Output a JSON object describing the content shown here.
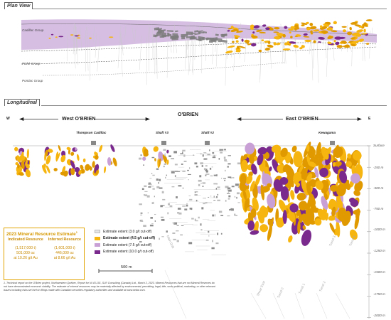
{
  "plan_view": {
    "title": "Plan View",
    "group_labels": [
      "Cadillac Group",
      "Piché Group",
      "Pontiac Group"
    ]
  },
  "longitudinal": {
    "title": "Longitudinal",
    "west_letter": "W",
    "east_letter": "E",
    "sections": {
      "west": "West O'BRIEN",
      "center": "O'BRIEN",
      "east": "East O'BRIEN"
    },
    "sites": [
      "Thompson Cadillac",
      "Shaft #3",
      "Shaft #2",
      "Kewagama"
    ],
    "depth_labels": [
      "Surface",
      "-250 m",
      "-500 m",
      "-750 m",
      "-1000 m",
      "-1250 m",
      "-1500 m",
      "-1750 m",
      "-2000 m"
    ],
    "drift_labels": [
      "Main Drift",
      "Shear East",
      "Trend 0",
      "Trend 1",
      "Trend 2",
      "Trend 3",
      "Trend 4"
    ],
    "scale_bar": "500 m"
  },
  "resource_estimate": {
    "title": "2023 Mineral Resource Estimate",
    "title_note": "1",
    "indicated": {
      "heading": "Indicated Resource",
      "tonnage": "(1,517,000 t)",
      "ounces": "501,000 oz",
      "grade": "at 10.26 g/t Au"
    },
    "inferred": {
      "heading": "Inferred Resource",
      "tonnage": "(1,601,000 t)",
      "ounces": "446,000 oz",
      "grade": "at 8.66 g/t Au"
    }
  },
  "legend": [
    {
      "label": "Estimate extent (3.0 g/t cut-off)",
      "color": "#e6e6e6",
      "bold": false
    },
    {
      "label": "Estimate extent (4.5 g/t cut-off)",
      "color": "#f6b50f",
      "bold": true
    },
    {
      "label": "Estimate extent (7.5 g/t cut-off)",
      "color": "#c9a0d6",
      "bold": false
    },
    {
      "label": "Estimate extent (10.0 g/t cut-off)",
      "color": "#7a2a8c",
      "bold": false
    }
  ],
  "footnote": "1. Technical report on the O'Brien project, Northwestern Québec, Report for NI 43-101, SLR Consulting (Canada) Ltd., March 2, 2023. Mineral Resources that are not Mineral Reserves do not have demonstrated economic viability. The estimate of mineral resources may be materially affected by environmental, permitting, legal, title, socio-political, marketing, or other relevant issues including risks set forth in filings made with Canadian securities regulatory authorities and available at www.sedar.com.",
  "colors": {
    "gold": "#f6b50f",
    "gold_dark": "#e09a00",
    "purple": "#7a2a8c",
    "lavender": "#c9a0d6",
    "gray_workings": "#9a9a9a",
    "accent": "#e2a400"
  }
}
